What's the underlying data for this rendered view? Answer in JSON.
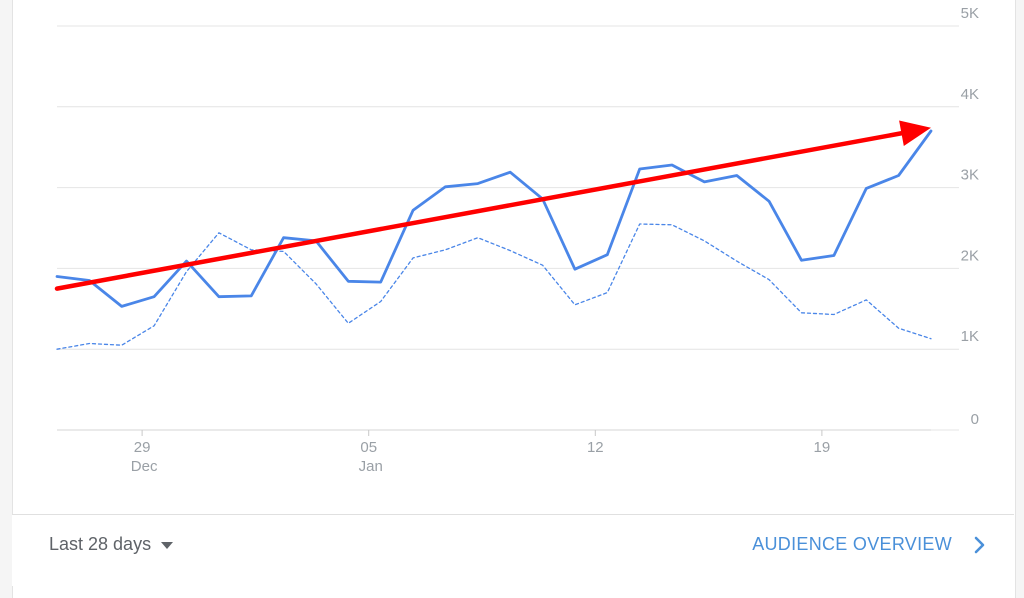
{
  "chart_data": {
    "type": "line",
    "ylim": [
      0,
      5000
    ],
    "y_ticks": [
      "0",
      "1K",
      "2K",
      "3K",
      "4K",
      "5K"
    ],
    "y_tick_values": [
      0,
      1000,
      2000,
      3000,
      4000,
      5000
    ],
    "x_ticks": [
      {
        "day": "29",
        "month": "Dec",
        "index": 3
      },
      {
        "day": "05",
        "month": "Jan",
        "index": 10
      },
      {
        "day": "12",
        "month": "",
        "index": 17
      },
      {
        "day": "19",
        "month": "",
        "index": 24
      }
    ],
    "grid": true,
    "series": [
      {
        "style": "solid",
        "color": "#4a86e8",
        "values": [
          1900,
          1850,
          1530,
          1650,
          2090,
          1650,
          1660,
          2380,
          2340,
          1840,
          1830,
          2720,
          3010,
          3050,
          3190,
          2860,
          1990,
          2170,
          3230,
          3280,
          3070,
          3150,
          2830,
          2100,
          2160,
          2990,
          3150,
          3700
        ]
      },
      {
        "style": "dashed",
        "color": "#4a86e8",
        "values": [
          1000,
          1070,
          1050,
          1290,
          1960,
          2440,
          2230,
          2210,
          1810,
          1320,
          1590,
          2130,
          2230,
          2380,
          2220,
          2040,
          1550,
          1700,
          2550,
          2540,
          2340,
          2090,
          1860,
          1450,
          1430,
          1610,
          1260,
          1130
        ]
      }
    ],
    "annotation": {
      "type": "trend-arrow",
      "color": "#ff0000",
      "from": [
        0,
        1750
      ],
      "to": [
        27,
        3740
      ]
    }
  },
  "footer": {
    "date_range": "Last 28 days",
    "link_label": "AUDIENCE OVERVIEW"
  }
}
